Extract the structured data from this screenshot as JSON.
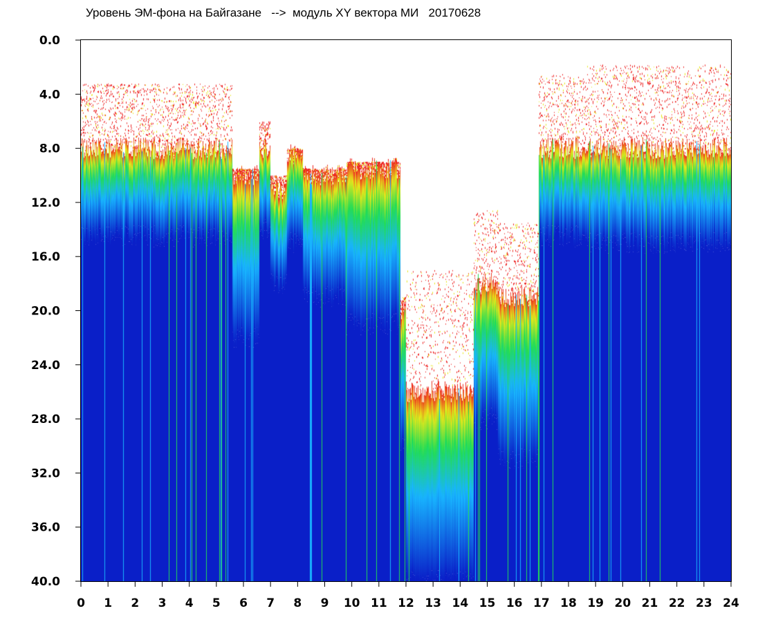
{
  "chart_data": {
    "type": "heatmap",
    "title": "Уровень ЭМ-фона на Байгазане   -->  модуль XY вектора МИ   20170628",
    "xlabel": "",
    "ylabel": "",
    "xlim": [
      0,
      24
    ],
    "ylim": [
      40,
      0
    ],
    "y_inverted": true,
    "grid": false,
    "x_ticks": [
      "0",
      "1",
      "2",
      "3",
      "4",
      "5",
      "6",
      "7",
      "8",
      "9",
      "10",
      "11",
      "12",
      "13",
      "14",
      "15",
      "16",
      "17",
      "18",
      "19",
      "20",
      "21",
      "22",
      "23",
      "24"
    ],
    "y_ticks": [
      "0.0",
      "4.0",
      "8.0",
      "12.0",
      "16.0",
      "20.0",
      "24.0",
      "28.0",
      "32.0",
      "36.0",
      "40.0"
    ],
    "colors": {
      "background": "#ffffff",
      "low": "#0a1fc8",
      "mid_low": "#18b4ff",
      "mid": "#22dd55",
      "mid_high": "#e8e81a",
      "high": "#ee2222"
    },
    "regions": [
      {
        "x": [
          0.0,
          5.6
        ],
        "top": 8.0,
        "band_to": 14.5,
        "sparse_to": 3.2
      },
      {
        "x": [
          5.6,
          6.6
        ],
        "top": 10.0,
        "band_to": 22.0,
        "sparse_to": 9.5
      },
      {
        "x": [
          6.6,
          7.0
        ],
        "top": 8.0,
        "band_to": 14.0,
        "sparse_to": 6.0
      },
      {
        "x": [
          7.0,
          7.6
        ],
        "top": 11.0,
        "band_to": 18.0,
        "sparse_to": 10.0
      },
      {
        "x": [
          7.6,
          8.2
        ],
        "top": 8.5,
        "band_to": 15.0,
        "sparse_to": 8.0
      },
      {
        "x": [
          8.2,
          9.8
        ],
        "top": 10.0,
        "band_to": 19.0,
        "sparse_to": 9.5
      },
      {
        "x": [
          9.8,
          11.8
        ],
        "top": 9.5,
        "band_to": 21.0,
        "sparse_to": 9.0
      },
      {
        "x": [
          11.8,
          12.0
        ],
        "top": 20.0,
        "band_to": 30.0,
        "sparse_to": 19.0
      },
      {
        "x": [
          12.0,
          14.5
        ],
        "top": 26.0,
        "band_to": 40.0,
        "sparse_to": 17.0
      },
      {
        "x": [
          14.5,
          15.4
        ],
        "top": 18.0,
        "band_to": 28.0,
        "sparse_to": 12.5
      },
      {
        "x": [
          15.4,
          16.9
        ],
        "top": 19.0,
        "band_to": 31.0,
        "sparse_to": 13.5
      },
      {
        "x": [
          16.9,
          18.7
        ],
        "top": 8.0,
        "band_to": 14.5,
        "sparse_to": 2.5
      },
      {
        "x": [
          18.7,
          24.0
        ],
        "top": 8.0,
        "band_to": 15.0,
        "sparse_to": 1.8
      }
    ]
  }
}
